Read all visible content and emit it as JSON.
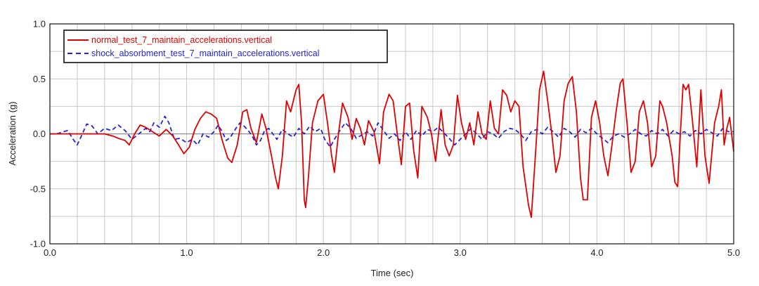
{
  "chart_data": {
    "type": "line",
    "title": "",
    "xlabel": "Time (sec)",
    "ylabel": "Acceleration (g)",
    "xlim": [
      0.0,
      5.0
    ],
    "ylim": [
      -1.0,
      1.0
    ],
    "x_ticks": [
      "0.0",
      "1.0",
      "2.0",
      "3.0",
      "4.0",
      "5.0"
    ],
    "y_ticks": [
      "-1.0",
      "-0.5",
      "0.0",
      "0.5",
      "1.0"
    ],
    "grid": true,
    "legend_position": "top-left",
    "series": [
      {
        "name": "normal_test_7_maintain_accelerations.vertical",
        "color": "#e00000",
        "style": "solid",
        "points": [
          [
            0.0,
            0.0
          ],
          [
            0.1,
            0.0
          ],
          [
            0.2,
            0.0
          ],
          [
            0.3,
            0.0
          ],
          [
            0.4,
            0.0
          ],
          [
            0.46,
            -0.02
          ],
          [
            0.5,
            -0.04
          ],
          [
            0.55,
            -0.06
          ],
          [
            0.58,
            -0.1
          ],
          [
            0.62,
            0.0
          ],
          [
            0.66,
            0.08
          ],
          [
            0.7,
            0.06
          ],
          [
            0.75,
            0.02
          ],
          [
            0.8,
            -0.02
          ],
          [
            0.85,
            0.04
          ],
          [
            0.9,
            -0.02
          ],
          [
            0.95,
            -0.12
          ],
          [
            0.98,
            -0.18
          ],
          [
            1.02,
            -0.12
          ],
          [
            1.06,
            0.04
          ],
          [
            1.1,
            0.14
          ],
          [
            1.14,
            0.2
          ],
          [
            1.18,
            0.18
          ],
          [
            1.22,
            0.14
          ],
          [
            1.26,
            -0.06
          ],
          [
            1.3,
            -0.22
          ],
          [
            1.33,
            -0.26
          ],
          [
            1.37,
            -0.1
          ],
          [
            1.41,
            0.2
          ],
          [
            1.44,
            0.22
          ],
          [
            1.47,
            0.05
          ],
          [
            1.51,
            -0.08
          ],
          [
            1.55,
            0.18
          ],
          [
            1.58,
            0.05
          ],
          [
            1.62,
            -0.2
          ],
          [
            1.65,
            -0.4
          ],
          [
            1.67,
            -0.5
          ],
          [
            1.7,
            -0.2
          ],
          [
            1.73,
            0.3
          ],
          [
            1.76,
            0.2
          ],
          [
            1.8,
            0.4
          ],
          [
            1.82,
            0.45
          ],
          [
            1.84,
            0.1
          ],
          [
            1.86,
            -0.6
          ],
          [
            1.87,
            -0.67
          ],
          [
            1.89,
            -0.4
          ],
          [
            1.92,
            0.1
          ],
          [
            1.96,
            0.3
          ],
          [
            2.0,
            0.36
          ],
          [
            2.03,
            0.1
          ],
          [
            2.06,
            -0.2
          ],
          [
            2.08,
            -0.35
          ],
          [
            2.11,
            0.0
          ],
          [
            2.14,
            0.28
          ],
          [
            2.18,
            0.15
          ],
          [
            2.21,
            -0.05
          ],
          [
            2.24,
            0.14
          ],
          [
            2.27,
            0.05
          ],
          [
            2.3,
            -0.1
          ],
          [
            2.33,
            0.12
          ],
          [
            2.37,
            0.02
          ],
          [
            2.41,
            -0.27
          ],
          [
            2.44,
            0.2
          ],
          [
            2.48,
            0.36
          ],
          [
            2.51,
            0.3
          ],
          [
            2.54,
            0.0
          ],
          [
            2.57,
            -0.28
          ],
          [
            2.6,
            0.25
          ],
          [
            2.63,
            0.28
          ],
          [
            2.66,
            -0.15
          ],
          [
            2.69,
            -0.4
          ],
          [
            2.72,
            0.25
          ],
          [
            2.76,
            0.15
          ],
          [
            2.79,
            0.0
          ],
          [
            2.82,
            -0.25
          ],
          [
            2.86,
            0.22
          ],
          [
            2.89,
            -0.1
          ],
          [
            2.92,
            -0.2
          ],
          [
            2.95,
            -0.1
          ],
          [
            2.98,
            0.35
          ],
          [
            3.01,
            0.1
          ],
          [
            3.04,
            -0.05
          ],
          [
            3.07,
            0.1
          ],
          [
            3.1,
            -0.1
          ],
          [
            3.13,
            0.2
          ],
          [
            3.16,
            0.0
          ],
          [
            3.19,
            -0.05
          ],
          [
            3.22,
            0.3
          ],
          [
            3.25,
            0.05
          ],
          [
            3.28,
            0.0
          ],
          [
            3.31,
            0.4
          ],
          [
            3.34,
            0.35
          ],
          [
            3.37,
            0.2
          ],
          [
            3.4,
            0.3
          ],
          [
            3.43,
            0.25
          ],
          [
            3.46,
            -0.3
          ],
          [
            3.5,
            -0.65
          ],
          [
            3.52,
            -0.76
          ],
          [
            3.55,
            -0.2
          ],
          [
            3.58,
            0.4
          ],
          [
            3.61,
            0.57
          ],
          [
            3.64,
            0.3
          ],
          [
            3.67,
            0.0
          ],
          [
            3.7,
            -0.35
          ],
          [
            3.73,
            -0.2
          ],
          [
            3.76,
            0.3
          ],
          [
            3.79,
            0.46
          ],
          [
            3.82,
            0.52
          ],
          [
            3.85,
            0.2
          ],
          [
            3.88,
            -0.4
          ],
          [
            3.9,
            -0.6
          ],
          [
            3.93,
            -0.6
          ],
          [
            3.96,
            0.15
          ],
          [
            3.99,
            0.3
          ],
          [
            4.02,
            0.1
          ],
          [
            4.05,
            -0.2
          ],
          [
            4.08,
            -0.38
          ],
          [
            4.11,
            -0.1
          ],
          [
            4.14,
            0.2
          ],
          [
            4.17,
            0.46
          ],
          [
            4.19,
            0.5
          ],
          [
            4.22,
            0.1
          ],
          [
            4.25,
            -0.35
          ],
          [
            4.28,
            -0.25
          ],
          [
            4.31,
            0.2
          ],
          [
            4.34,
            0.3
          ],
          [
            4.37,
            0.1
          ],
          [
            4.4,
            -0.3
          ],
          [
            4.43,
            -0.2
          ],
          [
            4.46,
            0.3
          ],
          [
            4.48,
            0.25
          ],
          [
            4.51,
            0.1
          ],
          [
            4.55,
            -0.2
          ],
          [
            4.57,
            -0.44
          ],
          [
            4.59,
            -0.48
          ],
          [
            4.61,
            0.0
          ],
          [
            4.63,
            0.45
          ],
          [
            4.65,
            0.4
          ],
          [
            4.67,
            0.45
          ],
          [
            4.7,
            0.1
          ],
          [
            4.73,
            -0.3
          ],
          [
            4.76,
            0.4
          ],
          [
            4.79,
            -0.2
          ],
          [
            4.82,
            -0.45
          ],
          [
            4.86,
            0.1
          ],
          [
            4.89,
            0.25
          ],
          [
            4.91,
            0.4
          ],
          [
            4.93,
            -0.1
          ],
          [
            4.95,
            0.05
          ],
          [
            4.97,
            0.15
          ],
          [
            5.0,
            -0.16
          ]
        ]
      },
      {
        "name": "shock_absorbment_test_7_maintain_accelerations.vertical",
        "color": "#2424d8",
        "style": "dashed",
        "points": [
          [
            0.0,
            0.0
          ],
          [
            0.05,
            0.0
          ],
          [
            0.1,
            0.02
          ],
          [
            0.13,
            0.03
          ],
          [
            0.17,
            -0.05
          ],
          [
            0.2,
            -0.1
          ],
          [
            0.23,
            -0.02
          ],
          [
            0.27,
            0.09
          ],
          [
            0.31,
            0.07
          ],
          [
            0.35,
            0.0
          ],
          [
            0.4,
            0.05
          ],
          [
            0.45,
            0.03
          ],
          [
            0.5,
            0.08
          ],
          [
            0.55,
            0.03
          ],
          [
            0.6,
            -0.05
          ],
          [
            0.65,
            0.0
          ],
          [
            0.7,
            0.05
          ],
          [
            0.73,
            0.02
          ],
          [
            0.76,
            0.1
          ],
          [
            0.8,
            0.06
          ],
          [
            0.84,
            0.16
          ],
          [
            0.87,
            0.1
          ],
          [
            0.91,
            -0.05
          ],
          [
            0.95,
            -0.04
          ],
          [
            1.0,
            -0.08
          ],
          [
            1.04,
            -0.05
          ],
          [
            1.08,
            -0.1
          ],
          [
            1.12,
            0.0
          ],
          [
            1.16,
            -0.03
          ],
          [
            1.2,
            0.02
          ],
          [
            1.23,
            0.08
          ],
          [
            1.26,
            0.02
          ],
          [
            1.29,
            -0.06
          ],
          [
            1.32,
            -0.03
          ],
          [
            1.36,
            0.05
          ],
          [
            1.39,
            0.1
          ],
          [
            1.42,
            0.07
          ],
          [
            1.45,
            0.03
          ],
          [
            1.48,
            -0.02
          ],
          [
            1.51,
            -0.1
          ],
          [
            1.54,
            -0.06
          ],
          [
            1.57,
            0.03
          ],
          [
            1.6,
            0.05
          ],
          [
            1.63,
            0.0
          ],
          [
            1.66,
            -0.05
          ],
          [
            1.7,
            0.04
          ],
          [
            1.74,
            0.0
          ],
          [
            1.78,
            -0.03
          ],
          [
            1.82,
            0.05
          ],
          [
            1.86,
            0.0
          ],
          [
            1.9,
            0.07
          ],
          [
            1.94,
            0.02
          ],
          [
            1.98,
            0.05
          ],
          [
            2.01,
            -0.05
          ],
          [
            2.05,
            -0.12
          ],
          [
            2.08,
            -0.05
          ],
          [
            2.12,
            0.03
          ],
          [
            2.16,
            0.1
          ],
          [
            2.2,
            0.05
          ],
          [
            2.24,
            -0.04
          ],
          [
            2.28,
            -0.01
          ],
          [
            2.32,
            0.02
          ],
          [
            2.36,
            -0.02
          ],
          [
            2.4,
            0.1
          ],
          [
            2.44,
            0.03
          ],
          [
            2.48,
            -0.04
          ],
          [
            2.52,
            0.0
          ],
          [
            2.56,
            -0.06
          ],
          [
            2.6,
            0.02
          ],
          [
            2.64,
            -0.05
          ],
          [
            2.68,
            0.03
          ],
          [
            2.72,
            -0.02
          ],
          [
            2.76,
            0.04
          ],
          [
            2.8,
            0.02
          ],
          [
            2.84,
            0.06
          ],
          [
            2.88,
            0.01
          ],
          [
            2.92,
            -0.04
          ],
          [
            2.96,
            -0.1
          ],
          [
            3.0,
            -0.05
          ],
          [
            3.04,
            0.0
          ],
          [
            3.08,
            0.05
          ],
          [
            3.12,
            0.0
          ],
          [
            3.16,
            -0.05
          ],
          [
            3.2,
            0.02
          ],
          [
            3.24,
            0.0
          ],
          [
            3.28,
            -0.04
          ],
          [
            3.32,
            0.02
          ],
          [
            3.36,
            0.05
          ],
          [
            3.4,
            0.04
          ],
          [
            3.44,
            0.0
          ],
          [
            3.48,
            -0.06
          ],
          [
            3.52,
            0.02
          ],
          [
            3.56,
            0.04
          ],
          [
            3.6,
            0.0
          ],
          [
            3.64,
            0.06
          ],
          [
            3.68,
            0.02
          ],
          [
            3.72,
            -0.03
          ],
          [
            3.76,
            0.05
          ],
          [
            3.8,
            0.02
          ],
          [
            3.84,
            -0.03
          ],
          [
            3.88,
            0.04
          ],
          [
            3.92,
            0.01
          ],
          [
            3.96,
            0.05
          ],
          [
            4.0,
            0.0
          ],
          [
            4.04,
            -0.04
          ],
          [
            4.08,
            -0.08
          ],
          [
            4.12,
            -0.02
          ],
          [
            4.16,
            0.0
          ],
          [
            4.2,
            -0.03
          ],
          [
            4.24,
            0.0
          ],
          [
            4.28,
            0.04
          ],
          [
            4.32,
            0.0
          ],
          [
            4.36,
            -0.02
          ],
          [
            4.4,
            0.03
          ],
          [
            4.44,
            0.0
          ],
          [
            4.48,
            0.04
          ],
          [
            4.52,
            -0.02
          ],
          [
            4.56,
            0.03
          ],
          [
            4.6,
            0.0
          ],
          [
            4.64,
            0.02
          ],
          [
            4.68,
            -0.02
          ],
          [
            4.72,
            0.03
          ],
          [
            4.76,
            0.0
          ],
          [
            4.8,
            0.04
          ],
          [
            4.84,
            0.01
          ],
          [
            4.88,
            -0.02
          ],
          [
            4.92,
            0.05
          ],
          [
            4.96,
            0.02
          ],
          [
            5.0,
            0.02
          ]
        ]
      }
    ]
  }
}
